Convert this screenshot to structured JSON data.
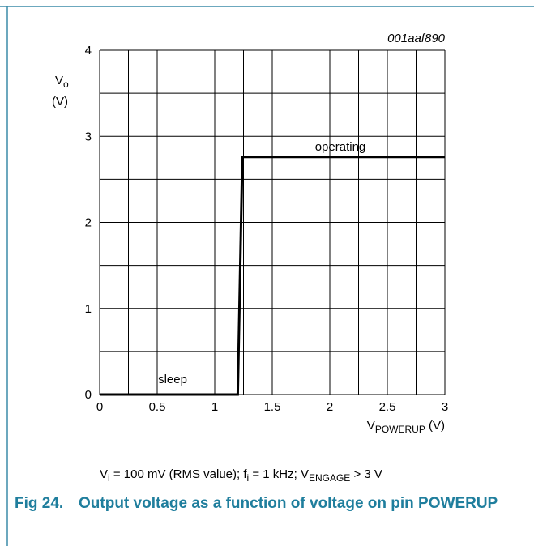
{
  "chart_data": {
    "type": "line",
    "figure_id": "001aaf890",
    "y_label": {
      "main": "V",
      "sub": "o",
      "unit": "(V)"
    },
    "x_label": {
      "main": "V",
      "sub": "POWERUP",
      "unit": " (V)"
    },
    "x": [
      0,
      1.2,
      1.24,
      3
    ],
    "values": [
      0,
      0,
      2.76,
      2.76
    ],
    "color": "#000000",
    "xlim": [
      0,
      3
    ],
    "ylim": [
      0,
      4
    ],
    "xticks": [
      0,
      0.5,
      1,
      1.5,
      2,
      2.5,
      3
    ],
    "yticks": [
      0,
      1,
      2,
      3,
      4
    ],
    "xgrid": [
      0,
      0.25,
      0.5,
      0.75,
      1,
      1.25,
      1.5,
      1.75,
      2,
      2.25,
      2.5,
      2.75,
      3
    ],
    "ygrid": [
      0,
      0.5,
      1,
      1.5,
      2,
      2.5,
      3,
      3.5,
      4
    ],
    "annotations": [
      "operating",
      "sleep"
    ],
    "note": [
      {
        "text": "V"
      },
      {
        "sub": "i"
      },
      {
        "text": " = 100 mV (RMS value); f"
      },
      {
        "sub": "i"
      },
      {
        "text": " = 1 kHz; V"
      },
      {
        "sub": "ENGAGE"
      },
      {
        "text": " > 3 V"
      }
    ],
    "caption": {
      "label": "Fig 24.",
      "text": "Output voltage as a function of voltage on pin POWERUP"
    }
  }
}
